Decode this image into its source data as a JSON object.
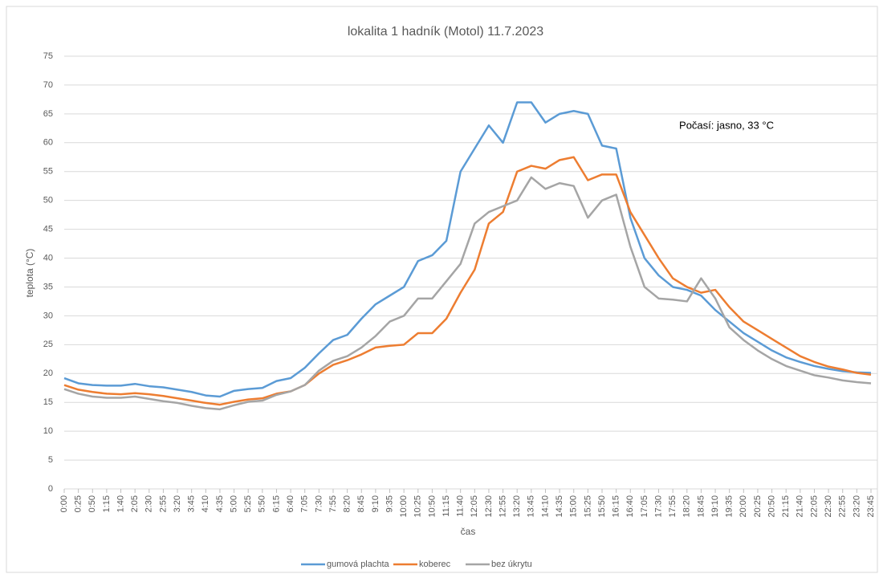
{
  "chart_data": {
    "type": "line",
    "title": "lokalita 1 hadník (Motol) 11.7.2023",
    "x_label": "čas",
    "y_label": "teplota (°C)",
    "annotation": "Počasí: jasno, 33 °C",
    "categories": [
      "0:00",
      "0:25",
      "0:50",
      "1:15",
      "1:40",
      "2:05",
      "2:30",
      "2:55",
      "3:20",
      "3:45",
      "4:10",
      "4:35",
      "5:00",
      "5:25",
      "5:50",
      "6:15",
      "6:40",
      "7:05",
      "7:30",
      "7:55",
      "8:20",
      "8:45",
      "9:10",
      "9:35",
      "10:00",
      "10:25",
      "10:50",
      "11:15",
      "11:40",
      "12:05",
      "12:30",
      "12:55",
      "13:20",
      "13:45",
      "14:10",
      "14:35",
      "15:00",
      "15:25",
      "15:50",
      "16:15",
      "16:40",
      "17:05",
      "17:30",
      "17:55",
      "18:20",
      "18:45",
      "19:10",
      "19:35",
      "20:00",
      "20:25",
      "20:50",
      "21:15",
      "21:40",
      "22:05",
      "22:30",
      "22:55",
      "23:20",
      "23:45"
    ],
    "series": [
      {
        "name": "gumová plachta",
        "color": "#5b9bd5",
        "values": [
          19.2,
          18.3,
          18,
          17.9,
          17.9,
          18.2,
          17.8,
          17.6,
          17.2,
          16.8,
          16.2,
          16,
          17,
          17.3,
          17.5,
          18.7,
          19.2,
          21,
          23.5,
          25.8,
          26.7,
          29.5,
          32,
          33.5,
          35,
          39.5,
          40.5,
          43,
          55,
          59,
          63,
          60,
          67,
          67,
          63.5,
          65,
          65.5,
          65,
          59.5,
          59,
          47,
          40,
          37,
          35,
          34.5,
          33.5,
          31,
          29,
          27,
          25.5,
          24,
          22.8,
          22,
          21.3,
          20.8,
          20.4,
          20.2,
          20.1
        ]
      },
      {
        "name": "koberec",
        "color": "#ed7d31",
        "values": [
          18,
          17.2,
          16.8,
          16.5,
          16.4,
          16.6,
          16.4,
          16.1,
          15.7,
          15.3,
          14.9,
          14.6,
          15.1,
          15.5,
          15.7,
          16.5,
          16.9,
          18,
          20,
          21.5,
          22.3,
          23.3,
          24.5,
          24.8,
          25,
          27,
          27,
          29.5,
          34,
          38,
          46,
          48,
          55,
          56,
          55.5,
          57,
          57.5,
          53.5,
          54.5,
          54.5,
          48,
          44,
          40,
          36.5,
          35,
          34,
          34.5,
          31.5,
          29,
          27.5,
          26,
          24.5,
          23,
          22,
          21.2,
          20.7,
          20.1,
          19.8
        ]
      },
      {
        "name": "bez úkrytu",
        "color": "#a5a5a5",
        "values": [
          17.3,
          16.5,
          16,
          15.8,
          15.8,
          16,
          15.6,
          15.2,
          14.9,
          14.4,
          14,
          13.8,
          14.5,
          15.1,
          15.3,
          16.3,
          16.9,
          18,
          20.5,
          22.2,
          23,
          24.5,
          26.5,
          29,
          30,
          33,
          33,
          36,
          39,
          46,
          48,
          49,
          50,
          54,
          52,
          53,
          52.5,
          47,
          50,
          51,
          42,
          35,
          33,
          32.8,
          32.5,
          36.5,
          33,
          28,
          25.8,
          24,
          22.5,
          21.3,
          20.5,
          19.7,
          19.3,
          18.8,
          18.5,
          18.3
        ]
      }
    ],
    "ylim": [
      0,
      75
    ],
    "yticks": [
      0,
      5,
      10,
      15,
      20,
      25,
      30,
      35,
      40,
      45,
      50,
      55,
      60,
      65,
      70,
      75
    ],
    "grid": true,
    "legend": "bottom"
  }
}
